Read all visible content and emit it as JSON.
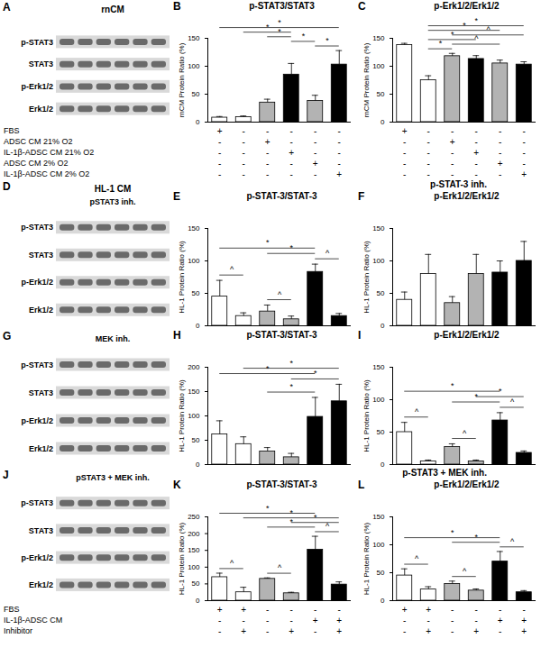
{
  "chart_data": [
    {
      "type": "bar",
      "panel": "B",
      "title": "p-STAT3/STAT3",
      "ylabel": "rnCM Protein Ratio (%)",
      "categories": [
        null,
        null,
        null,
        null,
        null,
        null
      ],
      "values": [
        8,
        9,
        35,
        85,
        38,
        103
      ],
      "errors": [
        2,
        2,
        6,
        20,
        10,
        25
      ],
      "colors": [
        "#ffffff",
        "#ffffff",
        "#b3b3b3",
        "#000000",
        "#b3b3b3",
        "#000000"
      ],
      "ylim": [
        0,
        150
      ],
      "yticks": [
        0,
        50,
        100,
        150
      ],
      "tick_labels": "y",
      "annotations": [
        {
          "from": 4,
          "to": 5,
          "text": "*"
        },
        {
          "from": 3,
          "to": 4,
          "text": "*"
        },
        {
          "from": 2,
          "to": 3,
          "text": "*"
        },
        {
          "from": 1,
          "to": 3,
          "text": "*"
        },
        {
          "from": 0,
          "to": 5,
          "text": "*"
        }
      ]
    },
    {
      "type": "bar",
      "panel": "C",
      "title": "p-Erk1/2/Erk1/2",
      "ylabel": "rnCM Protein Ratio (%)",
      "categories": [
        null,
        null,
        null,
        null,
        null,
        null
      ],
      "values": [
        138,
        75,
        118,
        113,
        105,
        103
      ],
      "errors": [
        3,
        8,
        5,
        6,
        6,
        5
      ],
      "colors": [
        "#ffffff",
        "#ffffff",
        "#b3b3b3",
        "#000000",
        "#b3b3b3",
        "#000000"
      ],
      "ylim": [
        0,
        150
      ],
      "yticks": [
        0,
        50,
        100,
        150
      ],
      "tick_labels": "y",
      "annotations": [
        {
          "from": 1,
          "to": 2,
          "text": "*"
        },
        {
          "from": 2,
          "to": 4,
          "text": "^"
        },
        {
          "from": 1,
          "to": 3,
          "text": "*"
        },
        {
          "from": 2,
          "to": 5,
          "text": "^"
        },
        {
          "from": 1,
          "to": 4,
          "text": "*"
        },
        {
          "from": 1,
          "to": 5,
          "text": "*"
        }
      ]
    },
    {
      "type": "bar",
      "panel": "E",
      "title": "p-STAT-3/STAT-3",
      "ylabel": "HL-1 Protein Ratio (%)",
      "categories": [
        null,
        null,
        null,
        null,
        null,
        null
      ],
      "values": [
        45,
        15,
        22,
        10,
        83,
        15
      ],
      "errors": [
        25,
        5,
        10,
        5,
        12,
        4
      ],
      "colors": [
        "#ffffff",
        "#ffffff",
        "#b3b3b3",
        "#b3b3b3",
        "#000000",
        "#000000"
      ],
      "ylim": [
        0,
        150
      ],
      "yticks": [
        0,
        50,
        100,
        150
      ],
      "tick_labels": "y",
      "annotations": [
        {
          "from": 0,
          "to": 1,
          "text": "^"
        },
        {
          "from": 2,
          "to": 3,
          "text": "^"
        },
        {
          "from": 4,
          "to": 5,
          "text": "^"
        },
        {
          "from": 2,
          "to": 4,
          "text": "*"
        },
        {
          "from": 0,
          "to": 4,
          "text": "*"
        }
      ]
    },
    {
      "type": "bar",
      "panel": "F",
      "title": "p-Erk1/2/Erk1/2",
      "ylabel": "HL-1 Protein Ratio (%)",
      "categories": [
        null,
        null,
        null,
        null,
        null,
        null
      ],
      "values": [
        40,
        80,
        35,
        80,
        82,
        100
      ],
      "errors": [
        12,
        30,
        10,
        30,
        18,
        30
      ],
      "colors": [
        "#ffffff",
        "#ffffff",
        "#b3b3b3",
        "#b3b3b3",
        "#000000",
        "#000000"
      ],
      "ylim": [
        0,
        150
      ],
      "yticks": [
        0,
        50,
        100,
        150
      ],
      "tick_labels": "y",
      "annotations": []
    },
    {
      "type": "bar",
      "panel": "H",
      "title": "p-STAT-3/STAT-3",
      "ylabel": "HL-1 Protein Ratio (%)",
      "categories": [
        null,
        null,
        null,
        null,
        null,
        null
      ],
      "values": [
        62,
        42,
        27,
        15,
        98,
        130
      ],
      "errors": [
        28,
        15,
        8,
        8,
        40,
        35
      ],
      "colors": [
        "#ffffff",
        "#ffffff",
        "#b3b3b3",
        "#b3b3b3",
        "#000000",
        "#000000"
      ],
      "ylim": [
        0,
        200
      ],
      "yticks": [
        0,
        50,
        100,
        150,
        200
      ],
      "tick_labels": "y",
      "annotations": [
        {
          "from": 2,
          "to": 4,
          "text": "*"
        },
        {
          "from": 3,
          "to": 5,
          "text": "*"
        },
        {
          "from": 0,
          "to": 4,
          "text": "*"
        },
        {
          "from": 1,
          "to": 5,
          "text": "*"
        }
      ]
    },
    {
      "type": "bar",
      "panel": "I",
      "title": "p-Erk1/2/Erk1/2",
      "ylabel": "HL-1 Protein Ratio (%)",
      "categories": [
        null,
        null,
        null,
        null,
        null,
        null
      ],
      "values": [
        50,
        5,
        27,
        5,
        68,
        18
      ],
      "errors": [
        15,
        2,
        5,
        2,
        12,
        3
      ],
      "colors": [
        "#ffffff",
        "#ffffff",
        "#b3b3b3",
        "#b3b3b3",
        "#000000",
        "#000000"
      ],
      "ylim": [
        0,
        150
      ],
      "yticks": [
        0,
        50,
        100,
        150
      ],
      "tick_labels": "y",
      "annotations": [
        {
          "from": 0,
          "to": 1,
          "text": "^"
        },
        {
          "from": 2,
          "to": 3,
          "text": "^"
        },
        {
          "from": 4,
          "to": 5,
          "text": "^"
        },
        {
          "from": 2,
          "to": 4,
          "text": "*"
        },
        {
          "from": 3,
          "to": 5,
          "text": "*"
        },
        {
          "from": 0,
          "to": 4,
          "text": "*"
        }
      ]
    },
    {
      "type": "bar",
      "panel": "K",
      "title": "p-STAT-3/STAT-3",
      "ylabel": "HL-1 Protein Ratio (%)",
      "categories": [
        null,
        null,
        null,
        null,
        null,
        null
      ],
      "values": [
        70,
        25,
        65,
        22,
        152,
        48
      ],
      "errors": [
        12,
        15,
        3,
        3,
        40,
        8
      ],
      "colors": [
        "#ffffff",
        "#ffffff",
        "#b3b3b3",
        "#b3b3b3",
        "#000000",
        "#000000"
      ],
      "ylim": [
        0,
        250
      ],
      "yticks": [
        0,
        50,
        100,
        150,
        200,
        250
      ],
      "tick_labels": "y",
      "annotations": [
        {
          "from": 0,
          "to": 1,
          "text": "^"
        },
        {
          "from": 2,
          "to": 3,
          "text": "^"
        },
        {
          "from": 4,
          "to": 5,
          "text": "^"
        },
        {
          "from": 2,
          "to": 4,
          "text": "*"
        },
        {
          "from": 3,
          "to": 5,
          "text": "*"
        },
        {
          "from": 1,
          "to": 5,
          "text": "*"
        },
        {
          "from": 0,
          "to": 4,
          "text": "*"
        }
      ]
    },
    {
      "type": "bar",
      "panel": "L",
      "title": "p-Erk1/2/Erk1/2",
      "ylabel": "HL-1 Protein Ratio (%)",
      "categories": [
        null,
        null,
        null,
        null,
        null,
        null
      ],
      "values": [
        45,
        20,
        30,
        18,
        70,
        15
      ],
      "errors": [
        12,
        5,
        5,
        3,
        18,
        3
      ],
      "colors": [
        "#ffffff",
        "#ffffff",
        "#b3b3b3",
        "#b3b3b3",
        "#000000",
        "#000000"
      ],
      "ylim": [
        0,
        150
      ],
      "yticks": [
        0,
        50,
        100,
        150
      ],
      "tick_labels": "y",
      "annotations": [
        {
          "from": 0,
          "to": 1,
          "text": "^"
        },
        {
          "from": 2,
          "to": 3,
          "text": "^"
        },
        {
          "from": 4,
          "to": 5,
          "text": "^"
        },
        {
          "from": 2,
          "to": 4,
          "text": "*"
        },
        {
          "from": 0,
          "to": 4,
          "text": "*"
        }
      ]
    }
  ],
  "blots": [
    {
      "panel": "A",
      "title": "rnCM",
      "bands": [
        "p-STAT3",
        "STAT3",
        "p-Erk1/2",
        "Erk1/2"
      ]
    },
    {
      "panel": "D",
      "title": "HL-1 CM",
      "subtitle": "pSTAT3 inh.",
      "bands": [
        "p-STAT3",
        "STAT3",
        "p-Erk1/2",
        "Erk1/2"
      ]
    },
    {
      "panel": "G",
      "subtitle": "MEK inh.",
      "bands": [
        "p-STAT3",
        "STAT3",
        "p-Erk1/2",
        "Erk1/2"
      ]
    },
    {
      "panel": "J",
      "subtitle": "pSTAT3 + MEK inh.",
      "bands": [
        "p-STAT3",
        "STAT3",
        "p-Erk1/2",
        "Erk1/2"
      ]
    }
  ],
  "group_titles": [
    "p-STAT-3 inh.",
    "p-STAT3 + MEK inh."
  ],
  "conditions": [
    {
      "rows": [
        {
          "label": "FBS",
          "values": [
            "+",
            "-",
            "-",
            "-",
            "-",
            "-"
          ]
        },
        {
          "label": "ADSC CM 21% O2",
          "values": [
            "-",
            "-",
            "+",
            "-",
            "-",
            "-"
          ]
        },
        {
          "label": "IL-1β-ADSC CM 21% O2",
          "values": [
            "-",
            "-",
            "-",
            "+",
            "-",
            "-"
          ]
        },
        {
          "label": "ADSC CM 2% O2",
          "values": [
            "-",
            "-",
            "-",
            "-",
            "+",
            "-"
          ]
        },
        {
          "label": "IL-1β-ADSC CM 2% O2",
          "values": [
            "-",
            "-",
            "-",
            "-",
            "-",
            "+"
          ]
        }
      ]
    },
    {
      "rows": [
        {
          "label": "FBS",
          "values": [
            "+",
            "+",
            "-",
            "-",
            "-",
            "-"
          ]
        },
        {
          "label": "IL-1β-ADSC CM",
          "values": [
            "-",
            "-",
            "-",
            "-",
            "+",
            "+"
          ]
        },
        {
          "label": "Inhibitor",
          "values": [
            "-",
            "+",
            "-",
            "+",
            "-",
            "+"
          ]
        }
      ]
    }
  ]
}
